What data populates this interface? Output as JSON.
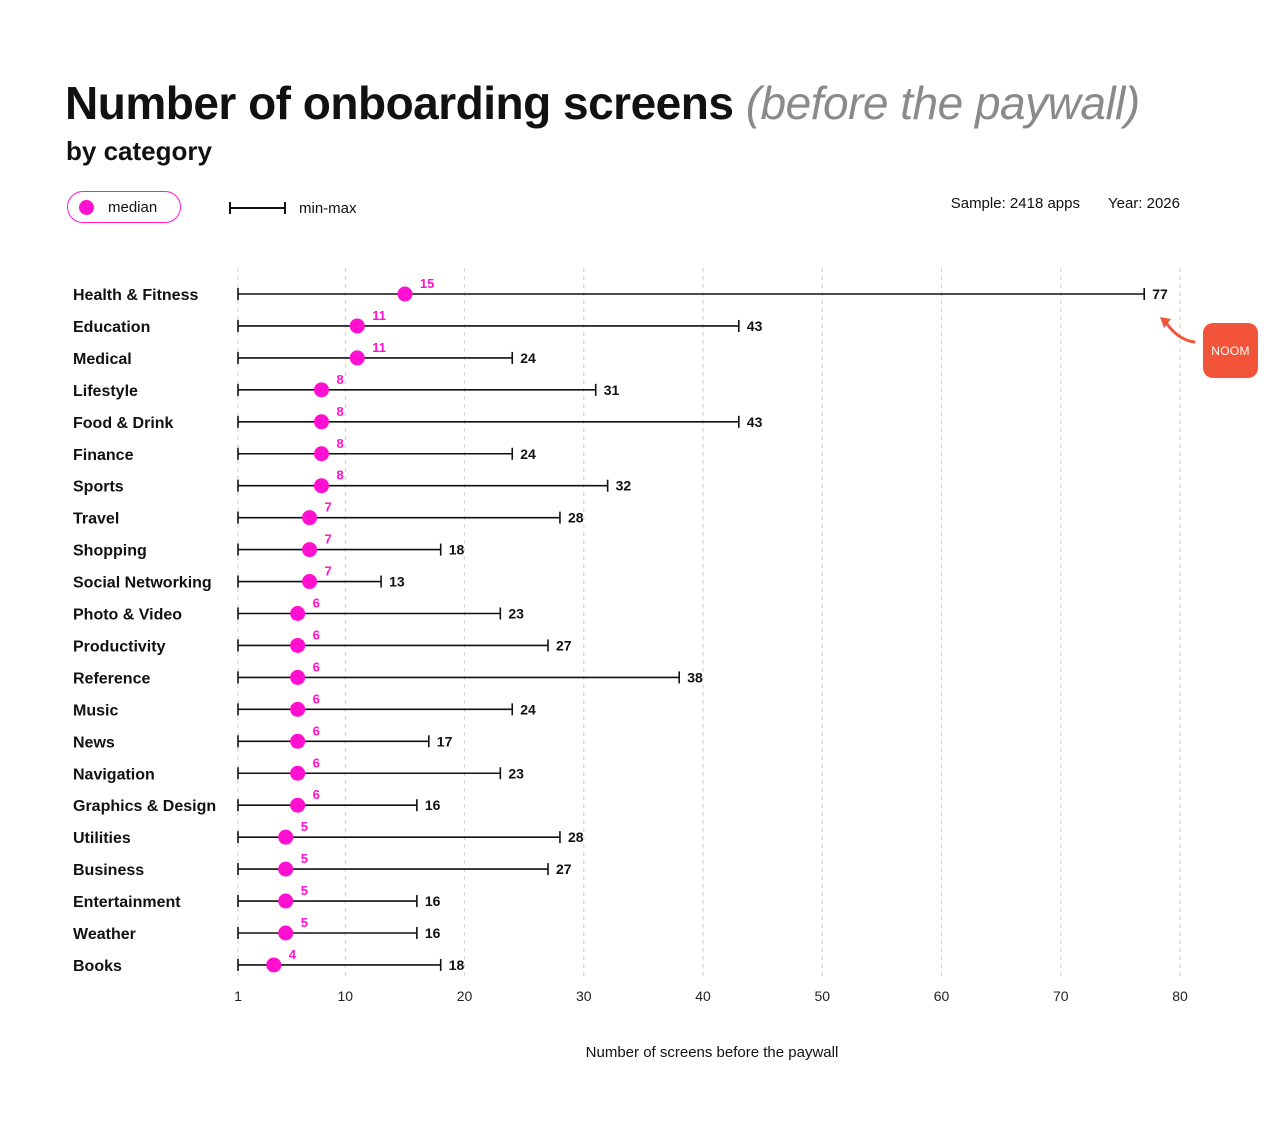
{
  "header": {
    "title_main": "Number of onboarding screens",
    "title_muted": "(before the paywall)",
    "subtitle": "by category"
  },
  "legend": {
    "median_label": "median",
    "range_label": "min-max"
  },
  "meta": {
    "sample": "Sample: 2418 apps",
    "year": "Year: 2026"
  },
  "annotation": {
    "label": "NOOM",
    "color": "#f2543a",
    "points_to": "Health & Fitness max"
  },
  "colors": {
    "median": "#ff10d0",
    "median_label": "#ff10d0",
    "range": "#111111",
    "grid": "#cfcfcf"
  },
  "chart_data": {
    "type": "range-dot",
    "xlabel": "Number of screens before the paywall",
    "xlim": [
      1,
      80
    ],
    "xticks": [
      1,
      10,
      20,
      30,
      40,
      50,
      60,
      70,
      80
    ],
    "grid": "vertical dashed",
    "categories": [
      "Health & Fitness",
      "Education",
      "Medical",
      "Lifestyle",
      "Food & Drink",
      "Finance",
      "Sports",
      "Travel",
      "Shopping",
      "Social Networking",
      "Photo & Video",
      "Productivity",
      "Reference",
      "Music",
      "News",
      "Navigation",
      "Graphics & Design",
      "Utilities",
      "Business",
      "Entertainment",
      "Weather",
      "Books"
    ],
    "series": [
      {
        "name": "median",
        "values": [
          15,
          11,
          11,
          8,
          8,
          8,
          8,
          7,
          7,
          7,
          6,
          6,
          6,
          6,
          6,
          6,
          6,
          5,
          5,
          5,
          5,
          4
        ]
      },
      {
        "name": "min",
        "values": [
          1,
          1,
          1,
          1,
          1,
          1,
          1,
          1,
          1,
          1,
          1,
          1,
          1,
          1,
          1,
          1,
          1,
          1,
          1,
          1,
          1,
          1
        ]
      },
      {
        "name": "max",
        "values": [
          77,
          43,
          24,
          31,
          43,
          24,
          32,
          28,
          18,
          13,
          23,
          27,
          38,
          24,
          17,
          23,
          16,
          28,
          27,
          16,
          16,
          18
        ]
      }
    ]
  }
}
